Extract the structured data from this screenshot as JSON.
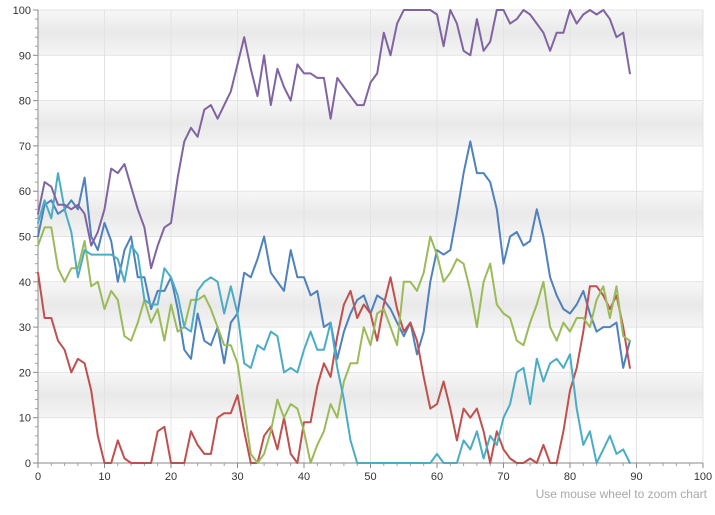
{
  "chart_data": {
    "type": "line",
    "title": "",
    "xlabel": "",
    "ylabel": "",
    "xlim": [
      0,
      100
    ],
    "ylim": [
      0,
      100
    ],
    "x_ticks": [
      0,
      10,
      20,
      30,
      40,
      50,
      60,
      70,
      80,
      90,
      100
    ],
    "y_ticks": [
      0,
      10,
      20,
      30,
      40,
      50,
      60,
      70,
      80,
      90,
      100
    ],
    "grid": "horizontal and vertical",
    "band_shading": "alternating grey bands every 10 units",
    "x": [
      0,
      1,
      2,
      3,
      4,
      5,
      6,
      7,
      8,
      9,
      10,
      11,
      12,
      13,
      14,
      15,
      16,
      17,
      18,
      19,
      20,
      21,
      22,
      23,
      24,
      25,
      26,
      27,
      28,
      29,
      30,
      31,
      32,
      33,
      34,
      35,
      36,
      37,
      38,
      39,
      40,
      41,
      42,
      43,
      44,
      45,
      46,
      47,
      48,
      49,
      50,
      51,
      52,
      53,
      54,
      55,
      56,
      57,
      58,
      59,
      60,
      61,
      62,
      63,
      64,
      65,
      66,
      67,
      68,
      69,
      70,
      71,
      72,
      73,
      74,
      75,
      76,
      77,
      78,
      79,
      80,
      81,
      82,
      83,
      84,
      85,
      86,
      87,
      88,
      89
    ],
    "series": [
      {
        "color": "#4f81bd",
        "values": [
          50,
          57,
          58,
          55,
          56,
          58,
          56,
          63,
          50,
          47,
          53,
          49,
          40,
          47,
          50,
          41,
          41,
          34,
          38,
          38,
          41,
          34,
          25,
          23,
          33,
          27,
          26,
          30,
          22,
          31,
          33,
          42,
          41,
          45,
          50,
          42,
          40,
          38,
          47,
          41,
          41,
          37,
          38,
          30,
          31,
          23,
          29,
          33,
          36,
          37,
          33,
          37,
          36,
          34,
          31,
          28,
          31,
          24,
          29,
          40,
          47,
          46,
          47,
          55,
          64,
          71,
          64,
          64,
          62,
          56,
          44,
          50,
          51,
          48,
          49,
          56,
          50,
          41,
          37,
          34,
          33,
          35,
          38,
          33,
          29,
          30,
          30,
          31,
          21,
          27
        ]
      },
      {
        "color": "#c0504d",
        "values": [
          42,
          32,
          32,
          27,
          25,
          20,
          23,
          22,
          16,
          6,
          0,
          0,
          5,
          1,
          0,
          0,
          0,
          0,
          7,
          8,
          0,
          0,
          0,
          7,
          4,
          2,
          2,
          10,
          11,
          11,
          15,
          7,
          0,
          0,
          6,
          8,
          3,
          10,
          2,
          0,
          9,
          9,
          17,
          22,
          19,
          28,
          35,
          38,
          32,
          35,
          33,
          27,
          35,
          41,
          34,
          29,
          31,
          27,
          19,
          12,
          13,
          18,
          12,
          5,
          12,
          10,
          12,
          7,
          0,
          7,
          3,
          1,
          0,
          0,
          1,
          0,
          4,
          0,
          0,
          7,
          16,
          21,
          29,
          39,
          39,
          37,
          34,
          37,
          30,
          21
        ]
      },
      {
        "color": "#9bbb59",
        "values": [
          48,
          52,
          52,
          43,
          40,
          43,
          43,
          49,
          39,
          40,
          34,
          38,
          36,
          28,
          27,
          31,
          36,
          31,
          34,
          27,
          35,
          29,
          30,
          36,
          36,
          37,
          34,
          30,
          26,
          26,
          22,
          12,
          2,
          0,
          2,
          7,
          14,
          10,
          13,
          12,
          7,
          0,
          4,
          7,
          13,
          10,
          18,
          22,
          22,
          30,
          26,
          33,
          34,
          30,
          26,
          40,
          40,
          38,
          42,
          50,
          46,
          40,
          42,
          45,
          44,
          38,
          30,
          40,
          44,
          35,
          33,
          32,
          27,
          26,
          31,
          35,
          40,
          30,
          27,
          31,
          29,
          32,
          32,
          30,
          36,
          39,
          32,
          39,
          28,
          27
        ]
      },
      {
        "color": "#4bacc6",
        "values": [
          53,
          58,
          54,
          64,
          56,
          51,
          41,
          47,
          46,
          46,
          46,
          46,
          45,
          40,
          48,
          46,
          36,
          35,
          35,
          43,
          41,
          37,
          30,
          29,
          38,
          40,
          41,
          40,
          33,
          39,
          33,
          22,
          21,
          26,
          25,
          29,
          28,
          20,
          21,
          20,
          25,
          29,
          25,
          25,
          31,
          21,
          14,
          5,
          0,
          0,
          0,
          0,
          0,
          0,
          0,
          0,
          0,
          0,
          0,
          0,
          2,
          0,
          0,
          0,
          5,
          3,
          7,
          1,
          6,
          4,
          10,
          13,
          20,
          21,
          13,
          23,
          18,
          22,
          23,
          21,
          24,
          12,
          4,
          7,
          0,
          3,
          6,
          2,
          3,
          0
        ]
      },
      {
        "color": "#8064a2",
        "values": [
          55,
          62,
          61,
          57,
          57,
          56,
          57,
          55,
          48,
          51,
          56,
          65,
          64,
          66,
          61,
          56,
          52,
          43,
          48,
          52,
          53,
          63,
          71,
          74,
          72,
          78,
          79,
          76,
          79,
          82,
          88,
          94,
          87,
          81,
          90,
          79,
          87,
          83,
          80,
          88,
          86,
          86,
          85,
          85,
          76,
          85,
          83,
          81,
          79,
          79,
          84,
          86,
          95,
          90,
          97,
          100,
          100,
          100,
          100,
          100,
          99,
          92,
          100,
          97,
          91,
          90,
          98,
          91,
          93,
          100,
          100,
          97,
          98,
          100,
          99,
          97,
          95,
          91,
          95,
          95,
          100,
          97,
          99,
          100,
          99,
          100,
          98,
          94,
          95,
          86
        ]
      }
    ]
  },
  "hint_text": "Use mouse wheel to zoom chart"
}
